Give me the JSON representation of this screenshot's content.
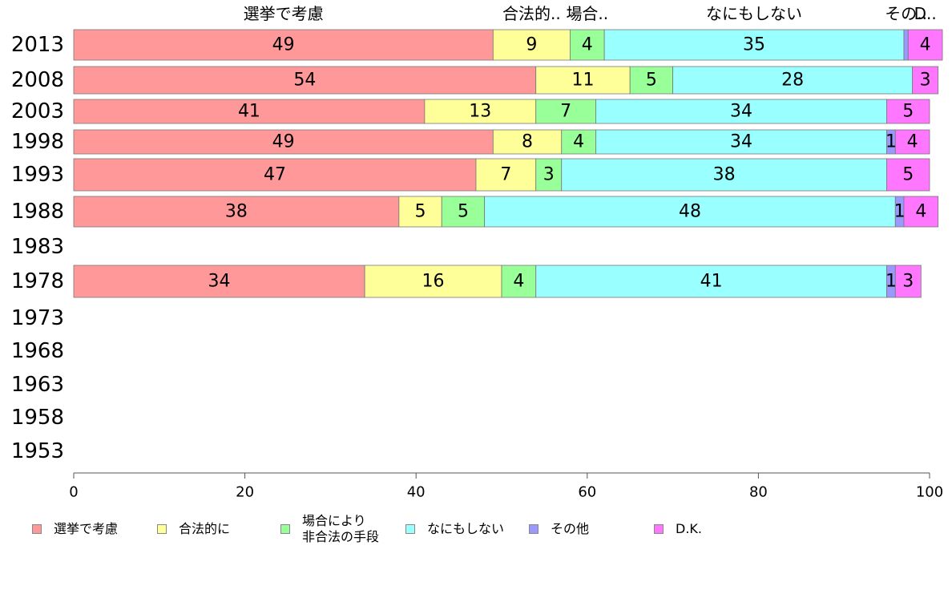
{
  "chart_data": {
    "type": "bar",
    "orientation": "horizontal",
    "stacked": true,
    "categories": [
      "2013",
      "2008",
      "2003",
      "1998",
      "1993",
      "1988",
      "1983",
      "1978",
      "1973",
      "1968",
      "1963",
      "1958",
      "1953"
    ],
    "series": [
      {
        "name": "選挙で考慮",
        "header": "選挙で考慮",
        "color": "#ff9999",
        "values": [
          49,
          54,
          41,
          49,
          47,
          38,
          null,
          34,
          null,
          null,
          null,
          null,
          null
        ]
      },
      {
        "name": "合法的に",
        "header": "合法的..",
        "color": "#ffff99",
        "values": [
          9,
          11,
          13,
          8,
          7,
          5,
          null,
          16,
          null,
          null,
          null,
          null,
          null
        ]
      },
      {
        "name": "場合により\n非合法の手段",
        "header": "場合..",
        "color": "#99ff99",
        "values": [
          4,
          5,
          7,
          4,
          3,
          5,
          null,
          4,
          null,
          null,
          null,
          null,
          null
        ]
      },
      {
        "name": "なにもしない",
        "header": "なにもしない",
        "color": "#99ffff",
        "values": [
          35,
          28,
          34,
          34,
          38,
          48,
          null,
          41,
          null,
          null,
          null,
          null,
          null
        ]
      },
      {
        "name": "その他",
        "header": "その..",
        "color": "#9999ff",
        "values": [
          0.5,
          0,
          0,
          1,
          0,
          1,
          null,
          1,
          null,
          null,
          null,
          null,
          null
        ]
      },
      {
        "name": "D.K.",
        "header": "D..",
        "color": "#ff77ff",
        "values": [
          4,
          3,
          5,
          4,
          5,
          4,
          null,
          3,
          null,
          null,
          null,
          null,
          null
        ]
      }
    ],
    "xlim": [
      0,
      100
    ],
    "xticks": [
      0,
      20,
      40,
      60,
      80,
      100
    ],
    "title": "",
    "xlabel": "",
    "ylabel": "",
    "legend_position": "bottom"
  }
}
